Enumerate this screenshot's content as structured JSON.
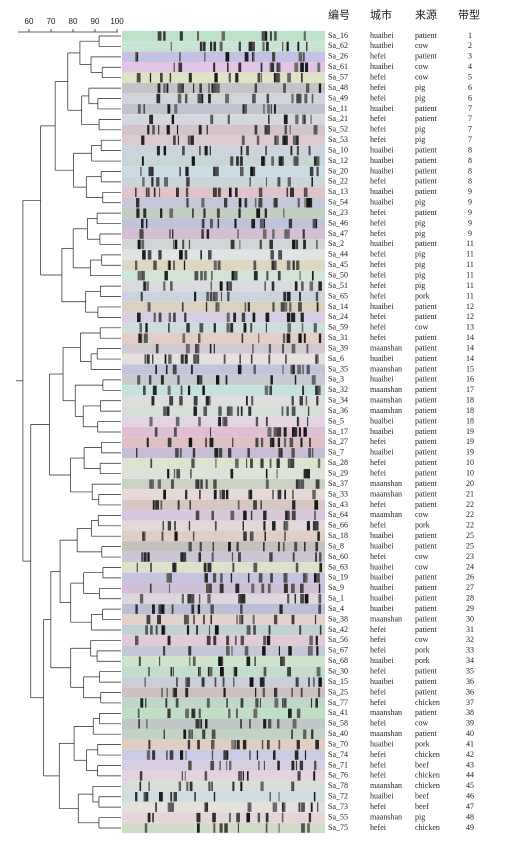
{
  "scale": {
    "ticks": [
      60,
      70,
      80,
      90,
      100
    ]
  },
  "table": {
    "header": [
      "编号",
      "城市",
      "来源",
      "带型"
    ],
    "rows": [
      [
        "Sa_16",
        "huaibei",
        "patient",
        1
      ],
      [
        "Sa_62",
        "huaibei",
        "cow",
        2
      ],
      [
        "Sa_26",
        "hefei",
        "patient",
        3
      ],
      [
        "Sa_61",
        "huaibei",
        "cow",
        4
      ],
      [
        "Sa_57",
        "hefei",
        "cow",
        5
      ],
      [
        "Sa_48",
        "hefei",
        "pig",
        6
      ],
      [
        "Sa_49",
        "hefei",
        "pig",
        6
      ],
      [
        "Sa_11",
        "huaibei",
        "patient",
        7
      ],
      [
        "Sa_21",
        "hefei",
        "patient",
        7
      ],
      [
        "Sa_52",
        "hefei",
        "pig",
        7
      ],
      [
        "Sa_53",
        "hefei",
        "pig",
        7
      ],
      [
        "Sa_10",
        "huaibei",
        "patient",
        8
      ],
      [
        "Sa_12",
        "huaibei",
        "patient",
        8
      ],
      [
        "Sa_20",
        "huaibei",
        "patient",
        8
      ],
      [
        "Sa_22",
        "hefei",
        "patient",
        8
      ],
      [
        "Sa_13",
        "huaibei",
        "patient",
        9
      ],
      [
        "Sa_54",
        "huaibei",
        "pig",
        9
      ],
      [
        "Sa_23",
        "hefei",
        "patient",
        9
      ],
      [
        "Sa_46",
        "hefei",
        "pig",
        9
      ],
      [
        "Sa_47",
        "hefei",
        "pig",
        9
      ],
      [
        "Sa_2",
        "huaibei",
        "patient",
        11
      ],
      [
        "Sa_44",
        "hefei",
        "pig",
        11
      ],
      [
        "Sa_45",
        "hefei",
        "pig",
        11
      ],
      [
        "Sa_50",
        "hefei",
        "pig",
        11
      ],
      [
        "Sa_51",
        "hefei",
        "pig",
        11
      ],
      [
        "Sa_65",
        "hefei",
        "pork",
        11
      ],
      [
        "Sa_14",
        "huaibei",
        "patient",
        12
      ],
      [
        "Sa_24",
        "hefei",
        "patient",
        12
      ],
      [
        "Sa_59",
        "hefei",
        "cow",
        13
      ],
      [
        "Sa_31",
        "hefei",
        "patient",
        14
      ],
      [
        "Sa_39",
        "maanshan",
        "patient",
        14
      ],
      [
        "Sa_6",
        "huaibei",
        "patient",
        14
      ],
      [
        "Sa_35",
        "maanshan",
        "patient",
        15
      ],
      [
        "Sa_3",
        "huaibei",
        "patient",
        16
      ],
      [
        "Sa_32",
        "maanshan",
        "patient",
        17
      ],
      [
        "Sa_34",
        "maanshan",
        "patient",
        18
      ],
      [
        "Sa_36",
        "maanshan",
        "patient",
        18
      ],
      [
        "Sa_5",
        "huaibei",
        "patient",
        18
      ],
      [
        "Sa_17",
        "huaibei",
        "patient",
        19
      ],
      [
        "Sa_27",
        "hefei",
        "patient",
        19
      ],
      [
        "Sa_7",
        "huaibei",
        "patient",
        19
      ],
      [
        "Sa_28",
        "hefei",
        "patient",
        10
      ],
      [
        "Sa_29",
        "hefei",
        "patient",
        10
      ],
      [
        "Sa_37",
        "maanshan",
        "patient",
        20
      ],
      [
        "Sa_33",
        "maanshan",
        "patient",
        21
      ],
      [
        "Sa_43",
        "hefei",
        "patient",
        22
      ],
      [
        "Sa_64",
        "maanshan",
        "cow",
        22
      ],
      [
        "Sa_66",
        "hefei",
        "pork",
        22
      ],
      [
        "Sa_18",
        "huaibei",
        "patient",
        25
      ],
      [
        "Sa_8",
        "huaibei",
        "patient",
        25
      ],
      [
        "Sa_60",
        "hefei",
        "cow",
        23
      ],
      [
        "Sa_63",
        "huaibei",
        "cow",
        24
      ],
      [
        "Sa_19",
        "huaibei",
        "patient",
        26
      ],
      [
        "Sa_9",
        "huaibei",
        "patient",
        27
      ],
      [
        "Sa_1",
        "huaibei",
        "patient",
        28
      ],
      [
        "Sa_4",
        "huaibei",
        "patient",
        29
      ],
      [
        "Sa_38",
        "maanshan",
        "patient",
        30
      ],
      [
        "Sa_42",
        "hefei",
        "patient",
        31
      ],
      [
        "Sa_56",
        "hefei",
        "cow",
        32
      ],
      [
        "Sa_67",
        "hefei",
        "pork",
        33
      ],
      [
        "Sa_68",
        "huaibei",
        "pork",
        34
      ],
      [
        "Sa_30",
        "hefei",
        "patient",
        35
      ],
      [
        "Sa_15",
        "huaibei",
        "patient",
        36
      ],
      [
        "Sa_25",
        "hefei",
        "patient",
        36
      ],
      [
        "Sa_77",
        "hefei",
        "chicken",
        37
      ],
      [
        "Sa_41",
        "maanshan",
        "patient",
        38
      ],
      [
        "Sa_58",
        "hefei",
        "cow",
        39
      ],
      [
        "Sa_40",
        "maanshan",
        "patient",
        40
      ],
      [
        "Sa_70",
        "huaibei",
        "pork",
        41
      ],
      [
        "Sa_74",
        "hefei",
        "chicken",
        42
      ],
      [
        "Sa_71",
        "hefei",
        "beef",
        43
      ],
      [
        "Sa_76",
        "hefei",
        "chicken",
        44
      ],
      [
        "Sa_78",
        "maanshan",
        "chicken",
        45
      ],
      [
        "Sa_72",
        "huaibei",
        "beef",
        46
      ],
      [
        "Sa_73",
        "hefei",
        "beef",
        47
      ],
      [
        "Sa_55",
        "maanshan",
        "pig",
        48
      ],
      [
        "Sa_75",
        "hefei",
        "chicken",
        49
      ]
    ]
  }
}
